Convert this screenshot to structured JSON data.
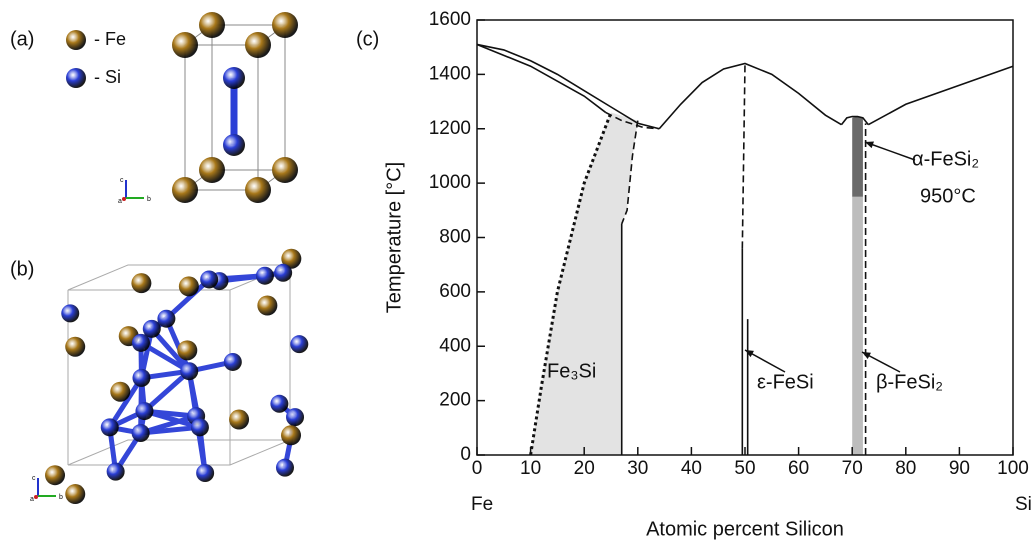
{
  "panel_labels": [
    "(a)",
    "(b)",
    "(c)"
  ],
  "legend": [
    {
      "label": "- Fe",
      "color": "#a8781a"
    },
    {
      "label": "- Si",
      "color": "#2b3fd6"
    }
  ],
  "triad_labels": [
    "c",
    "a",
    "b"
  ],
  "chart_data": {
    "type": "phase-diagram",
    "xlabel": "Atomic percent Silicon",
    "ylabel": "Temperature [°C]",
    "x_end_labels": [
      "Fe",
      "Si"
    ],
    "xlim": [
      0,
      100
    ],
    "xticks": [
      0,
      10,
      20,
      30,
      40,
      50,
      60,
      70,
      80,
      90,
      100
    ],
    "ylim": [
      0,
      1600
    ],
    "yticks": [
      0,
      200,
      400,
      600,
      800,
      1000,
      1200,
      1400,
      1600
    ],
    "regions": [
      {
        "color": "#e3e3e3",
        "x": [
          10,
          12,
          15,
          20,
          25,
          30,
          29,
          28,
          27,
          27
        ],
        "values": [
          0,
          250,
          600,
          1000,
          1260,
          1230,
          1100,
          900,
          850,
          0
        ]
      },
      {
        "color": "#bdbdbd",
        "x": [
          70,
          72,
          72,
          70
        ],
        "values": [
          0,
          0,
          950,
          950
        ]
      },
      {
        "color": "#6a6a6a",
        "x": [
          70,
          72,
          72,
          71,
          70
        ],
        "values": [
          950,
          950,
          1240,
          1245,
          1240
        ]
      }
    ],
    "series": [
      {
        "dash": "solid",
        "x": [
          0,
          5,
          10,
          15,
          20,
          25,
          30,
          34
        ],
        "values": [
          1510,
          1490,
          1450,
          1400,
          1340,
          1280,
          1220,
          1200
        ]
      },
      {
        "dash": "solid",
        "x": [
          0,
          10,
          20,
          24
        ],
        "values": [
          1510,
          1430,
          1320,
          1260
        ]
      },
      {
        "dash": "dashed",
        "x": [
          24,
          27,
          31,
          34
        ],
        "values": [
          1260,
          1230,
          1205,
          1200
        ]
      },
      {
        "dash": "solid",
        "x": [
          34,
          38,
          42,
          46,
          50,
          55,
          60,
          65,
          68
        ],
        "values": [
          1200,
          1290,
          1370,
          1420,
          1440,
          1400,
          1330,
          1250,
          1215
        ]
      },
      {
        "dash": "solid",
        "x": [
          68,
          69,
          70,
          71,
          72,
          73
        ],
        "values": [
          1215,
          1240,
          1245,
          1245,
          1240,
          1215
        ]
      },
      {
        "dash": "solid",
        "x": [
          73,
          80,
          90,
          100
        ],
        "values": [
          1215,
          1290,
          1360,
          1430
        ]
      },
      {
        "dash": "dotted",
        "x": [
          10,
          12,
          15,
          20,
          25
        ],
        "values": [
          0,
          250,
          600,
          1000,
          1260
        ]
      },
      {
        "dash": "dashed",
        "x": [
          30,
          29,
          28,
          27
        ],
        "values": [
          1230,
          1100,
          900,
          850
        ]
      },
      {
        "dash": "solid",
        "x": [
          27,
          27
        ],
        "values": [
          850,
          0
        ]
      },
      {
        "dash": "solid",
        "x": [
          49.5,
          49.5
        ],
        "values": [
          0,
          760
        ]
      },
      {
        "dash": "dashed",
        "x": [
          49.5,
          50
        ],
        "values": [
          760,
          1440
        ]
      },
      {
        "dash": "solid",
        "x": [
          50.5,
          50.5
        ],
        "values": [
          0,
          500
        ]
      },
      {
        "dash": "dashed",
        "x": [
          72.5,
          72.5
        ],
        "values": [
          0,
          1220
        ]
      }
    ],
    "annotations": [
      "Fe₃Si",
      "ε-FeSi",
      "β-FeSi₂",
      "α-FeSi₂",
      "950°C"
    ]
  }
}
